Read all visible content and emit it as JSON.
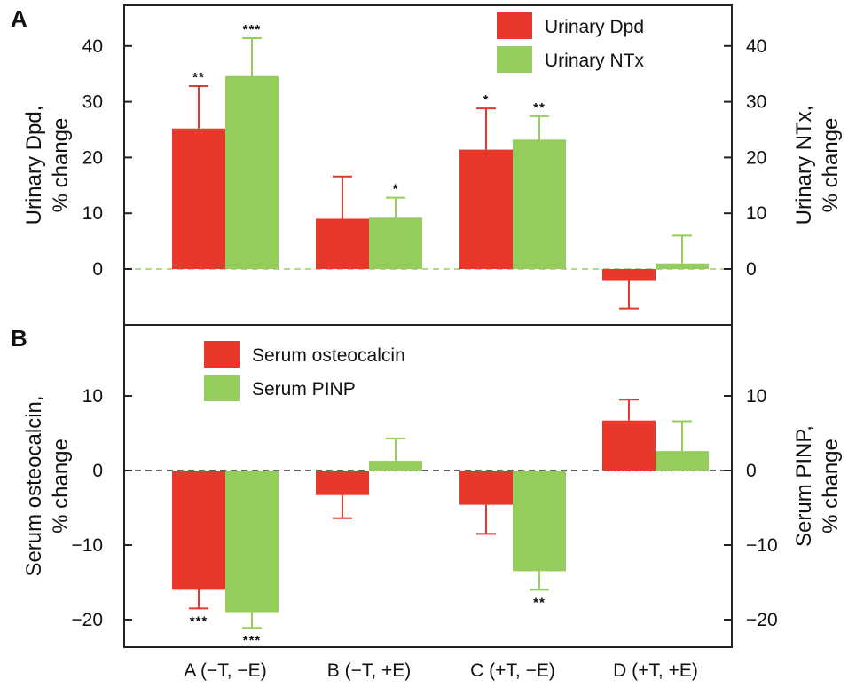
{
  "colors": {
    "red": "#e8382b",
    "green": "#94cd5b",
    "zero_line_a": "#9acd5c",
    "zero_line_b": "#333333"
  },
  "categories": [
    "A (−T, −E)",
    "B (−T, +E)",
    "C (+T, −E)",
    "D (+T, +E)"
  ],
  "chart_data": [
    {
      "panel": "A",
      "type": "bar",
      "categories": [
        "A (−T, −E)",
        "B (−T, +E)",
        "C (+T, −E)",
        "D (+T, +E)"
      ],
      "series": [
        {
          "name": "Urinary Dpd",
          "values": [
            25.2,
            9.0,
            21.4,
            -2.0
          ],
          "error": [
            7.6,
            7.6,
            7.4,
            5.1
          ],
          "sig": [
            "**",
            "",
            "*",
            ""
          ]
        },
        {
          "name": "Urinary NTx",
          "values": [
            34.6,
            9.2,
            23.2,
            1.0
          ],
          "error": [
            6.8,
            3.6,
            4.2,
            5.0
          ],
          "sig": [
            "***",
            "*",
            "**",
            ""
          ]
        }
      ],
      "ylabel_left": [
        "Urinary Dpd,",
        "% change"
      ],
      "ylabel_right": [
        "Urinary NTx,",
        "% change"
      ],
      "ylim": [
        -9.6,
        47.7
      ],
      "yticks": [
        0,
        10,
        20,
        30,
        40
      ],
      "zero_line": "dashed",
      "legend_position": "top-right"
    },
    {
      "panel": "B",
      "type": "bar",
      "categories": [
        "A (−T, −E)",
        "B (−T, +E)",
        "C (+T, −E)",
        "D (+T, +E)"
      ],
      "series": [
        {
          "name": "Serum osteocalcin",
          "values": [
            -16.0,
            -3.3,
            -4.6,
            6.7
          ],
          "error": [
            2.5,
            3.1,
            3.9,
            2.8
          ],
          "sig": [
            "***",
            "",
            "",
            ""
          ]
        },
        {
          "name": "Serum PINP",
          "values": [
            -19.0,
            1.3,
            -13.5,
            2.6
          ],
          "error": [
            2.1,
            3.0,
            2.5,
            4.0
          ],
          "sig": [
            "***",
            "",
            "**",
            ""
          ]
        }
      ],
      "ylabel_left": [
        "Serum osteocalcin,",
        "% change"
      ],
      "ylabel_right": [
        "Serum PINP,",
        "% change"
      ],
      "ylim": [
        -24.6,
        18.6
      ],
      "yticks": [
        -20,
        -10,
        0,
        10
      ],
      "zero_line": "dashed",
      "legend_position": "top-left"
    }
  ]
}
